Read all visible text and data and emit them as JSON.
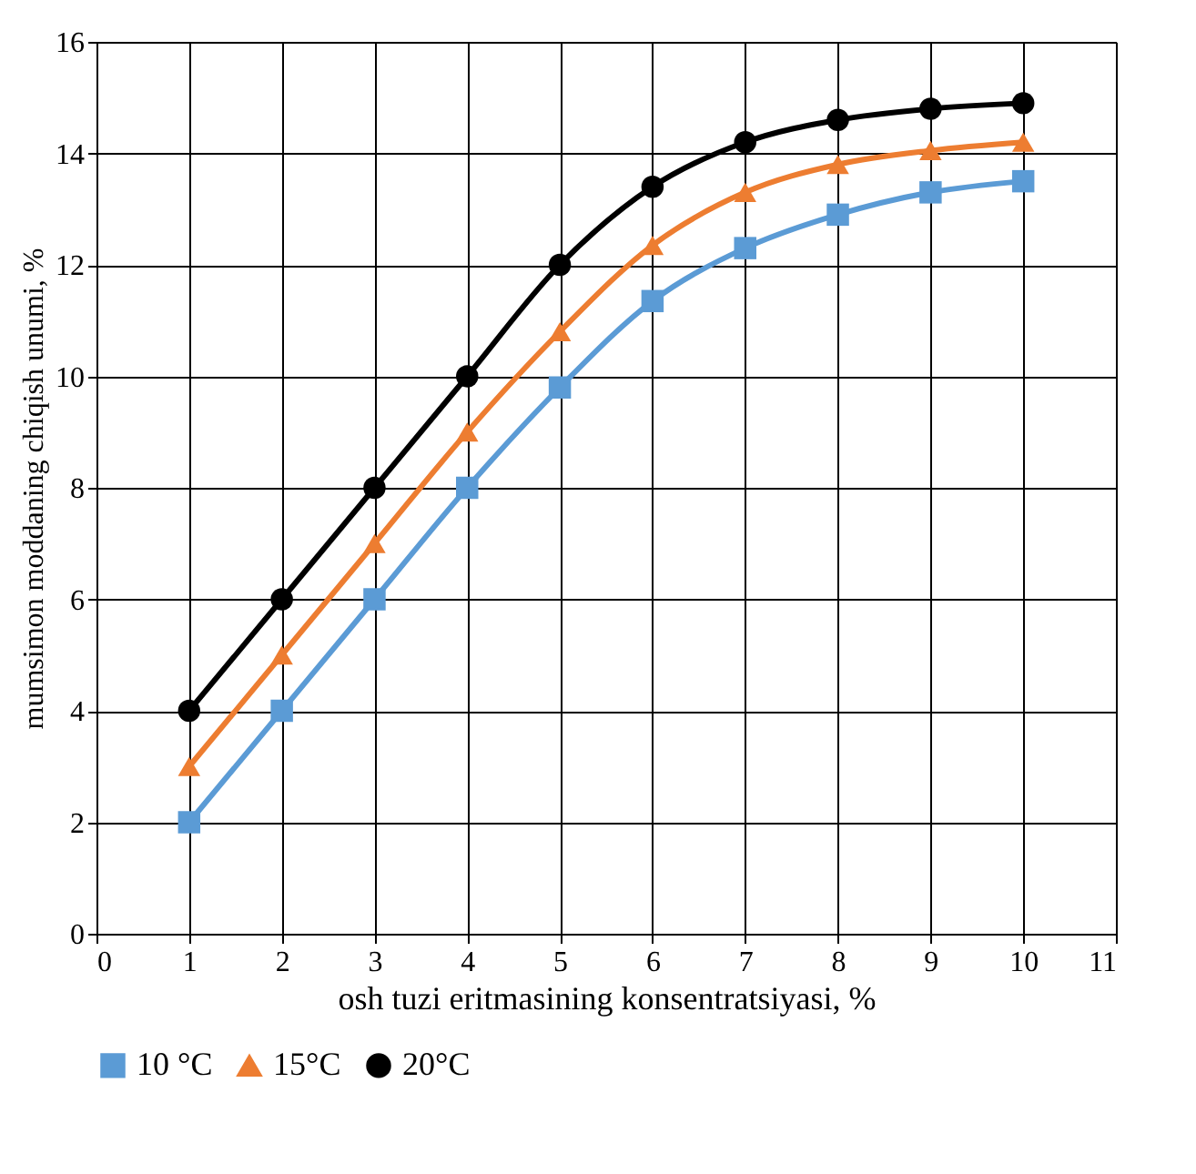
{
  "chart_data": {
    "type": "line",
    "xlabel": "osh tuzi eritmasining konsentratsiyasi, %",
    "ylabel": "mumsimon moddaning chiqish unumi, %",
    "x": [
      1,
      2,
      3,
      4,
      5,
      6,
      7,
      8,
      9,
      10
    ],
    "series": [
      {
        "name": "10 °C",
        "color": "#5b9bd5",
        "marker": "square",
        "values": [
          2,
          4,
          6,
          8,
          9.8,
          11.35,
          12.3,
          12.9,
          13.3,
          13.5
        ]
      },
      {
        "name": "15°C",
        "color": "#ed7d31",
        "marker": "triangle",
        "values": [
          3,
          5,
          7,
          9,
          10.8,
          12.35,
          13.3,
          13.8,
          14.05,
          14.2
        ]
      },
      {
        "name": "20°C",
        "color": "#000000",
        "marker": "circle",
        "values": [
          4,
          6,
          8,
          10,
          12,
          13.4,
          14.2,
          14.6,
          14.8,
          14.9
        ]
      }
    ],
    "xlim": [
      0,
      11
    ],
    "xticks": [
      0,
      1,
      2,
      3,
      4,
      5,
      6,
      7,
      8,
      9,
      10,
      11
    ],
    "ylim": [
      0,
      16
    ],
    "yticks": [
      0,
      2,
      4,
      6,
      8,
      10,
      12,
      14,
      16
    ],
    "grid": true,
    "legend": "bottom",
    "line_style": "solid"
  }
}
